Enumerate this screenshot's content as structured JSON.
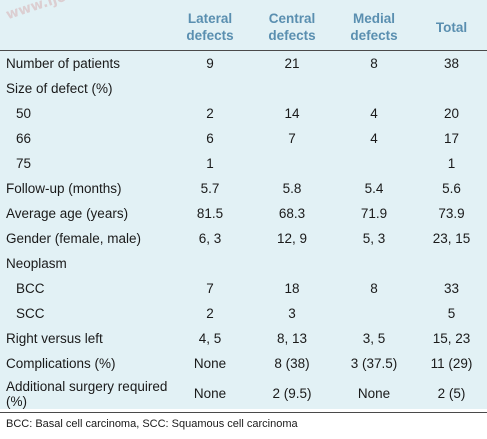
{
  "watermark": "www.ijo.in",
  "table": {
    "headers": [
      "",
      "Lateral defects",
      "Central defects",
      "Medial defects",
      "Total"
    ],
    "rows": [
      {
        "label": "Number of patients",
        "indent": false,
        "cells": [
          "9",
          "21",
          "8",
          "38"
        ]
      },
      {
        "label": "Size of defect (%)",
        "indent": false,
        "cells": [
          "",
          "",
          "",
          ""
        ]
      },
      {
        "label": "50",
        "indent": true,
        "cells": [
          "2",
          "14",
          "4",
          "20"
        ]
      },
      {
        "label": "66",
        "indent": true,
        "cells": [
          "6",
          "7",
          "4",
          "17"
        ]
      },
      {
        "label": "75",
        "indent": true,
        "cells": [
          "1",
          "",
          "",
          "1"
        ]
      },
      {
        "label": "Follow-up (months)",
        "indent": false,
        "cells": [
          "5.7",
          "5.8",
          "5.4",
          "5.6"
        ]
      },
      {
        "label": "Average age (years)",
        "indent": false,
        "cells": [
          "81.5",
          "68.3",
          "71.9",
          "73.9"
        ]
      },
      {
        "label": "Gender (female, male)",
        "indent": false,
        "cells": [
          "6, 3",
          "12, 9",
          "5, 3",
          "23, 15"
        ]
      },
      {
        "label": "Neoplasm",
        "indent": false,
        "cells": [
          "",
          "",
          "",
          ""
        ]
      },
      {
        "label": "BCC",
        "indent": true,
        "cells": [
          "7",
          "18",
          "8",
          "33"
        ]
      },
      {
        "label": "SCC",
        "indent": true,
        "cells": [
          "2",
          "3",
          "",
          "5"
        ]
      },
      {
        "label": "Right versus left",
        "indent": false,
        "cells": [
          "4, 5",
          "8, 13",
          "3, 5",
          "15, 23"
        ]
      },
      {
        "label": "Complications (%)",
        "indent": false,
        "cells": [
          "None",
          "8 (38)",
          "3 (37.5)",
          "11 (29)"
        ]
      },
      {
        "label": "Additional surgery required (%)",
        "indent": false,
        "tall": true,
        "cells": [
          "None",
          "2 (9.5)",
          "None",
          "2 (5)"
        ]
      }
    ]
  },
  "footnote": "BCC: Basal cell carcinoma, SCC: Squamous cell carcinoma"
}
